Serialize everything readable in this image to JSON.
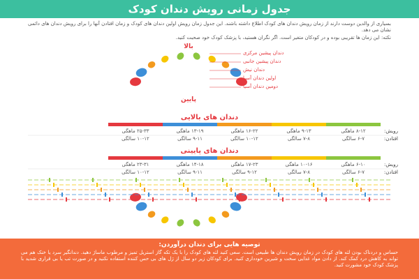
{
  "header": {
    "title": "جدول زمانی رویش دندان کودک"
  },
  "intro": [
    "بسیاری از والدین دوست دارند از زمان رویش دندان های کودک اطلاع داشته باشند. این جدول زمان رویش اولین دندان های کودک و زمان افتادن آنها را برای رویش دندان های دائمی نشان می دهد.",
    "نکته: این زمان ها تقریبی بوده و در کودکان متغیر است. اگر نگران هستید، با پزشک کودک خود صحبت کنید."
  ],
  "upper_label": "بالا",
  "lower_label": "پایین",
  "teeth": [
    {
      "name": "دندان پیشین مرکزی",
      "color": "#8cc63f"
    },
    {
      "name": "دندان پیشین جانبی",
      "color": "#f7c600"
    },
    {
      "name": "دندان نیش",
      "color": "#f39a1e"
    },
    {
      "name": "اولین دندان آسیا",
      "color": "#3d8fd8"
    },
    {
      "name": "دومین دندان آسیا",
      "color": "#e5393f"
    }
  ],
  "tables": [
    {
      "title": "دندان های بالایی",
      "row_labels": [
        "رویش:",
        "افتادن:"
      ],
      "rows": [
        [
          "۸-۱۲ ماهگی",
          "۹-۱۳ ماهگی",
          "۱۶-۲۲ ماهگی",
          "۱۳-۱۹ ماهگی",
          "۲۵-۳۳ ماهگی"
        ],
        [
          "۶-۷ سالگی",
          "۷-۸ سالگی",
          "۱۰-۱۲ سالگی",
          "۹-۱۱ سالگی",
          "۱۰-۱۲ سالگی"
        ]
      ]
    },
    {
      "title": "دندان های پایینی",
      "row_labels": [
        "رویش:",
        "افتادن:"
      ],
      "rows": [
        [
          "۶-۱۰ ماهگی",
          "۱۰-۱۶ ماهگی",
          "۱۷-۲۳ ماهگی",
          "۱۴-۱۸ ماهگی",
          "۲۳-۳۱ ماهگی"
        ],
        [
          "۶-۷ سالگی",
          "۷-۸ سالگی",
          "۹-۱۲ سالگی",
          "۹-۱۱ سالگی",
          "۱۰-۱۲ سالگی"
        ]
      ]
    }
  ],
  "tips": {
    "title": "توصیه هایی برای دندان درآوردن:",
    "text": "حساس و دردناک بودن لثه های کودک در زمان رویش دندان ها طبیعی است. سعی کنید لثه های کودک را با یک تکه گاز استریل تمیز و مرطوب ماساژ دهید. دندانگیر سرد یا خنک هم می تواند به کاهش درد کمک کند. از دادن مواد غذایی سخت و شیرین خودداری کنید. برای کودکان زیر دو سال از ژل های بی حس کننده استفاده نکنید و در صورت تب یا بی قراری شدید با پزشک کودک خود مشورت کنید."
  }
}
